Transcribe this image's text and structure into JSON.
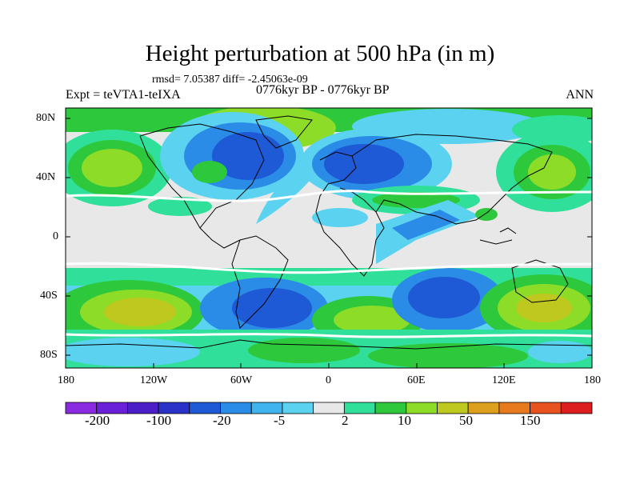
{
  "title": "Height perturbation at 500 hPa (in m)",
  "stats": "rmsd= 7.05387 diff= -2.45063e-09",
  "experiment": "Expt = teVTA1-teIXA",
  "period": "0776kyr BP - 0776kyr BP",
  "season": "ANN",
  "lat_ticks": [
    "80N",
    "40N",
    "0",
    "40S",
    "80S"
  ],
  "lon_ticks": [
    "180",
    "120W",
    "60W",
    "0",
    "60E",
    "120E",
    "180"
  ],
  "colorbar": {
    "labels": [
      "-200",
      "-100",
      "-20",
      "-5",
      "2",
      "10",
      "50",
      "150"
    ],
    "colors": [
      "#8A2BE2",
      "#6A1FD8",
      "#4B1EC8",
      "#2A32C8",
      "#1E5AD6",
      "#2A8CE6",
      "#3FB4EE",
      "#5AD2F0",
      "#E8E8E8",
      "#30E09A",
      "#2EC83C",
      "#8CDC28",
      "#BEC81E",
      "#DCA01E",
      "#E87A1E",
      "#E8521E",
      "#DC1E1E"
    ]
  },
  "palette": {
    "neutral": "#E8E8E8",
    "blue": "#1E5AD6",
    "mid_blue": "#2A8CE6",
    "light_blue": "#3FB4EE",
    "cyan": "#5AD2F0",
    "teal": "#30E09A",
    "green": "#2EC83C",
    "lime": "#8CDC28",
    "olive": "#BEC81E",
    "white": "#FFFFFF"
  }
}
